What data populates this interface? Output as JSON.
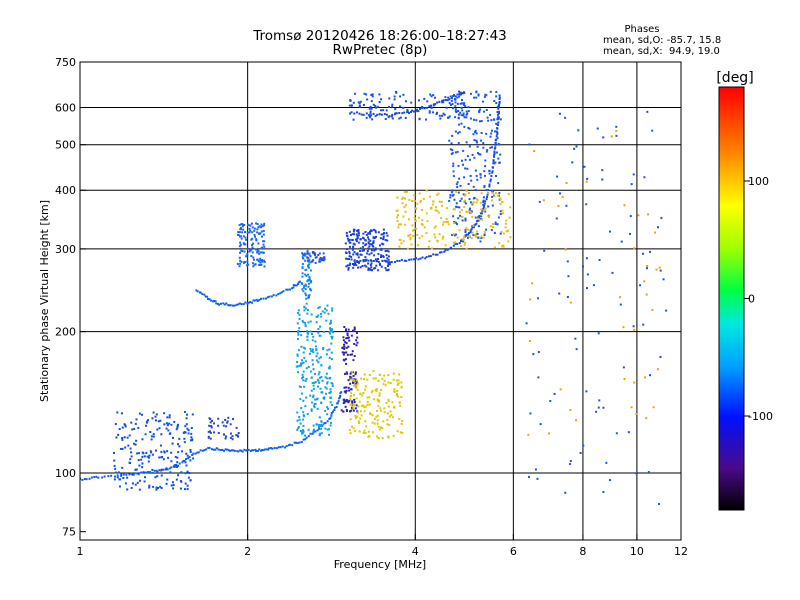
{
  "chart_data": {
    "type": "scatter",
    "title": "Tromsø 20120426 18:26:00–18:27:43",
    "subtitle": "RwPretec (8p)",
    "xlabel": "Frequency [MHz]",
    "ylabel": "Stationary phase Virtual Height [km]",
    "xscale": "log",
    "yscale": "log",
    "xlim": [
      1,
      12
    ],
    "ylim": [
      72,
      750
    ],
    "grid": true,
    "xticks": [
      1,
      2,
      4,
      6,
      8,
      10,
      12
    ],
    "xtick_labels": [
      "1",
      "2",
      "4",
      "6",
      "8",
      "10",
      "12"
    ],
    "xgrid": [
      2,
      4,
      6,
      8,
      10
    ],
    "yticks": [
      75,
      100,
      200,
      300,
      400,
      500,
      600,
      750
    ],
    "ytick_labels": [
      "75",
      "100",
      "200",
      "300",
      "400",
      "500",
      "600",
      "750"
    ],
    "ygrid": [
      100,
      200,
      300,
      400,
      500,
      600
    ],
    "info_box": {
      "heading": "Phases",
      "line_o": "mean, sd,O: -85.7, 15.8",
      "line_x": "mean, sd,X:  94.9, 19.0"
    },
    "colorbar": {
      "label": "[deg]",
      "range": [
        -180,
        180
      ],
      "ticks": [
        100,
        0,
        -100
      ],
      "tick_labels": [
        "100",
        "0",
        "-100"
      ],
      "colormap": "rainbow"
    },
    "traces": [
      {
        "type": "curve",
        "color": "#1060f0",
        "points": [
          [
            1.0,
            97
          ],
          [
            1.08,
            98
          ],
          [
            1.2,
            99
          ],
          [
            1.3,
            100
          ],
          [
            1.4,
            101
          ],
          [
            1.5,
            104
          ],
          [
            1.6,
            110
          ],
          [
            1.7,
            113
          ],
          [
            1.8,
            112
          ],
          [
            1.9,
            111.5
          ],
          [
            2.0,
            111.5
          ],
          [
            2.1,
            112
          ],
          [
            2.2,
            112.5
          ],
          [
            2.35,
            114
          ],
          [
            2.5,
            117
          ],
          [
            2.65,
            123
          ],
          [
            2.8,
            130
          ],
          [
            2.9,
            140
          ],
          [
            2.95,
            150
          ]
        ]
      },
      {
        "type": "scatter_cloud",
        "color": "#1050e0",
        "f_range": [
          1.15,
          1.6
        ],
        "h_range": [
          92,
          135
        ],
        "count": 220
      },
      {
        "type": "scatter_cloud",
        "color": "#2244d8",
        "f_range": [
          1.7,
          1.95
        ],
        "h_range": [
          118,
          132
        ],
        "count": 40
      },
      {
        "type": "scatter_cloud",
        "color": "#0fa0e8",
        "f_range": [
          2.45,
          2.85
        ],
        "h_range": [
          120,
          230
        ],
        "count": 260
      },
      {
        "type": "scatter_cloud",
        "color": "#1880e8",
        "f_range": [
          2.5,
          2.6
        ],
        "h_range": [
          235,
          300
        ],
        "count": 60
      },
      {
        "type": "scatter_cloud",
        "color": "#3020b0",
        "f_range": [
          2.95,
          3.15
        ],
        "h_range": [
          135,
          205
        ],
        "count": 110
      },
      {
        "type": "scatter_cloud",
        "color": "#e0c800",
        "f_range": [
          3.05,
          3.8
        ],
        "h_range": [
          118,
          165
        ],
        "count": 170
      },
      {
        "type": "curve",
        "color": "#1060f0",
        "points": [
          [
            1.62,
            245
          ],
          [
            1.7,
            235
          ],
          [
            1.78,
            229
          ],
          [
            1.88,
            228
          ],
          [
            2.0,
            230
          ],
          [
            2.1,
            234
          ],
          [
            2.25,
            240
          ],
          [
            2.4,
            248
          ],
          [
            2.5,
            256
          ]
        ]
      },
      {
        "type": "scatter_cloud",
        "color": "#1a68f0",
        "f_range": [
          1.92,
          2.15
        ],
        "h_range": [
          275,
          340
        ],
        "count": 130
      },
      {
        "type": "scatter_cloud",
        "color": "#2a50e0",
        "f_range": [
          2.5,
          2.75
        ],
        "h_range": [
          280,
          296
        ],
        "count": 40
      },
      {
        "type": "curve",
        "color": "#1848e0",
        "points": [
          [
            3.0,
            285
          ],
          [
            3.3,
            282
          ],
          [
            3.6,
            282
          ],
          [
            3.9,
            284
          ],
          [
            4.2,
            288
          ],
          [
            4.5,
            296
          ],
          [
            4.8,
            310
          ],
          [
            5.0,
            325
          ],
          [
            5.15,
            340
          ],
          [
            5.3,
            365
          ],
          [
            5.4,
            395
          ],
          [
            5.5,
            440
          ],
          [
            5.55,
            480
          ],
          [
            5.6,
            520
          ],
          [
            5.63,
            560
          ],
          [
            5.65,
            600
          ],
          [
            5.67,
            640
          ]
        ]
      },
      {
        "type": "scatter_cloud",
        "color": "#1a40d8",
        "f_range": [
          3.0,
          3.6
        ],
        "h_range": [
          270,
          330
        ],
        "count": 200
      },
      {
        "type": "scatter_cloud",
        "color": "#1858e8",
        "f_range": [
          4.6,
          5.7
        ],
        "h_range": [
          310,
          650
        ],
        "count": 260
      },
      {
        "type": "scatter_cloud",
        "color": "#e6c010",
        "f_range": [
          3.7,
          5.95
        ],
        "h_range": [
          300,
          400
        ],
        "count": 200
      },
      {
        "type": "curve",
        "color": "#1848e0",
        "points": [
          [
            3.05,
            585
          ],
          [
            3.3,
            580
          ],
          [
            3.6,
            578
          ],
          [
            3.9,
            585
          ],
          [
            4.2,
            600
          ],
          [
            4.5,
            620
          ],
          [
            4.8,
            640
          ],
          [
            4.9,
            645
          ]
        ]
      },
      {
        "type": "scatter_cloud",
        "color": "#1850e0",
        "f_range": [
          3.05,
          4.9
        ],
        "h_range": [
          565,
          650
        ],
        "count": 120
      },
      {
        "type": "scatter_cloud",
        "color": "#2050e0",
        "f_range": [
          6.3,
          11.3
        ],
        "h_range": [
          85,
          600
        ],
        "count": 90
      },
      {
        "type": "scatter_cloud",
        "color": "#f0a000",
        "f_range": [
          6.3,
          11.3
        ],
        "h_range": [
          120,
          600
        ],
        "count": 40
      }
    ]
  }
}
